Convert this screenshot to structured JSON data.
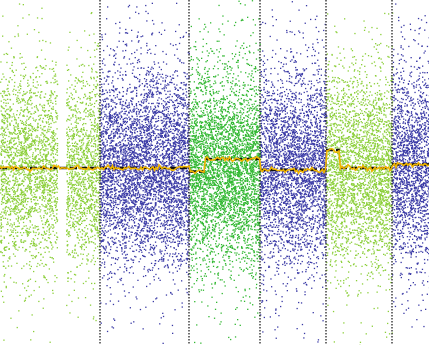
{
  "chart_data": {
    "type": "scatter",
    "title": "",
    "xlabel": "",
    "ylabel": "",
    "grid": false,
    "legend": "none",
    "ylim": [
      -1,
      1
    ],
    "xlim": [
      0,
      429
    ],
    "segments": [
      {
        "start": 0,
        "end": 100,
        "color": "#8ccf3a",
        "density": 0.55
      },
      {
        "start": 100,
        "end": 189,
        "color": "#3a3aa6",
        "density": 0.75
      },
      {
        "start": 189,
        "end": 260,
        "color": "#32b832",
        "density": 0.8
      },
      {
        "start": 260,
        "end": 326,
        "color": "#3a3aa6",
        "density": 0.7
      },
      {
        "start": 326,
        "end": 392,
        "color": "#8ccf3a",
        "density": 0.65
      },
      {
        "start": 392,
        "end": 429,
        "color": "#3a3aa6",
        "density": 0.7
      }
    ],
    "boundaries": [
      100,
      189,
      260,
      326,
      392
    ],
    "gap": {
      "start": 57,
      "end": 66
    },
    "baseline": 0.0,
    "segment_means": [
      {
        "x0": 0,
        "x1": 100,
        "y": 0.0
      },
      {
        "x0": 100,
        "x1": 189,
        "y": 0.0
      },
      {
        "x0": 189,
        "x1": 205,
        "y": -0.02
      },
      {
        "x0": 205,
        "x1": 260,
        "y": 0.05
      },
      {
        "x0": 260,
        "x1": 326,
        "y": -0.01
      },
      {
        "x0": 326,
        "x1": 340,
        "y": 0.1
      },
      {
        "x0": 340,
        "x1": 392,
        "y": 0.0
      },
      {
        "x0": 392,
        "x1": 429,
        "y": 0.02
      }
    ],
    "smoothed_color": "#f0b400",
    "mean_color": "#111111",
    "boundary_color": "#333333"
  }
}
